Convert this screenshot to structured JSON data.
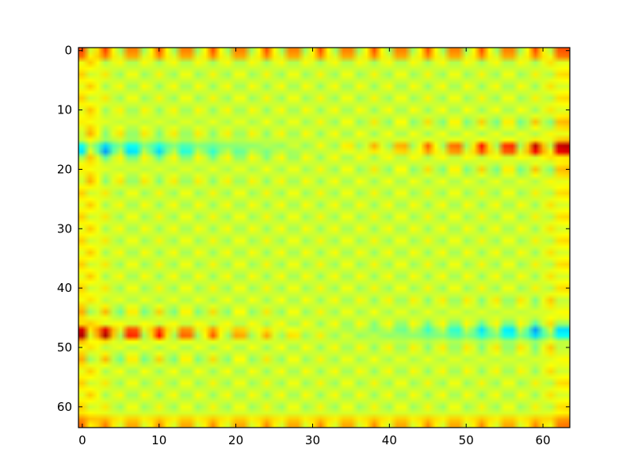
{
  "chart_data": {
    "type": "heatmap",
    "title": "",
    "xlabel": "",
    "ylabel": "",
    "grid": false,
    "legend": "none",
    "colormap": "jet",
    "shape": [
      64,
      64
    ],
    "xlim": [
      -0.5,
      63.5
    ],
    "ylim": [
      63.5,
      -0.5
    ],
    "y_axis_inverted": true,
    "xticks": [
      0,
      10,
      20,
      30,
      40,
      50,
      60
    ],
    "xtick_labels": [
      "0",
      "10",
      "20",
      "30",
      "40",
      "50",
      "60"
    ],
    "yticks": [
      0,
      10,
      20,
      30,
      40,
      50,
      60
    ],
    "ytick_labels": [
      "0",
      "10",
      "20",
      "30",
      "40",
      "50",
      "60"
    ],
    "value_range": [
      -1,
      1
    ],
    "background_level": 0.15,
    "column_period": 3.5,
    "bands": [
      {
        "row": 16.5,
        "amplitude_start": -1.0,
        "amplitude_end": 1.0
      },
      {
        "row": 47.5,
        "amplitude_start": 1.0,
        "amplitude_end": -1.0
      }
    ],
    "edge_dots": [
      {
        "row": 0.5,
        "sign": 1
      },
      {
        "row": 62.5,
        "sign": 1
      }
    ],
    "colors": {
      "low": "#00007f",
      "mid": "#7fff7f",
      "high": "#7f0000"
    }
  }
}
